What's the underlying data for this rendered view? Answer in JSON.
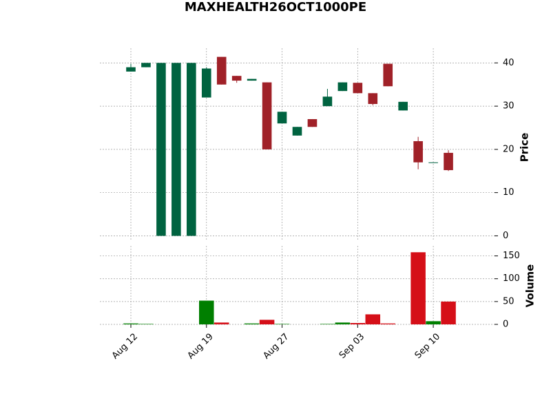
{
  "chart_data": {
    "type": "candlestick",
    "title": "MAXHEALTH26OCT1000PE",
    "categories": [
      "Aug 12",
      null,
      null,
      null,
      null,
      "Aug 19",
      null,
      null,
      null,
      null,
      "Aug 27",
      null,
      null,
      null,
      null,
      "Sep 03",
      null,
      null,
      null,
      null,
      "Sep 10",
      null
    ],
    "open": [
      38,
      39,
      0,
      0,
      0,
      32,
      41.4,
      37,
      35.9,
      35.5,
      26,
      23.2,
      27,
      30,
      33.5,
      35.4,
      33,
      39.8,
      29,
      21.9,
      17,
      19.2
    ],
    "high": [
      39.8,
      40,
      40,
      40,
      40,
      39,
      41.4,
      37,
      36.3,
      35.5,
      28.7,
      25.2,
      27,
      34,
      35.5,
      35.4,
      33,
      39.8,
      31,
      22.9,
      17,
      19.8
    ],
    "low": [
      38,
      39,
      0,
      0,
      0,
      32,
      35,
      35.4,
      35.9,
      20,
      26,
      23.2,
      25.2,
      30,
      33.5,
      33,
      30.2,
      34.6,
      29,
      15.4,
      17,
      15
    ],
    "close": [
      39,
      40,
      40,
      40,
      40,
      38.7,
      35,
      35.9,
      36.3,
      20,
      28.7,
      25.2,
      25.2,
      32.2,
      35.5,
      33,
      30.5,
      34.6,
      31,
      17,
      17,
      15.2
    ],
    "volume": [
      2,
      1,
      0,
      0,
      0,
      52,
      4,
      0,
      2,
      10,
      1,
      0,
      0,
      1,
      4,
      3,
      22,
      2,
      0,
      158,
      7,
      50
    ],
    "up_color": "#006340",
    "down_color": "#a02128",
    "volume_up_color": "#007f00",
    "volume_down_color": "#d50f18",
    "ylabel": "Price",
    "volume_label": "Volume",
    "ylim": [
      -1.2,
      43.4
    ],
    "yticks": [
      0,
      10,
      20,
      30,
      40
    ],
    "volume_ylim": [
      0,
      172
    ],
    "volume_yticks": [
      0,
      50,
      100,
      150
    ],
    "grid": true
  }
}
